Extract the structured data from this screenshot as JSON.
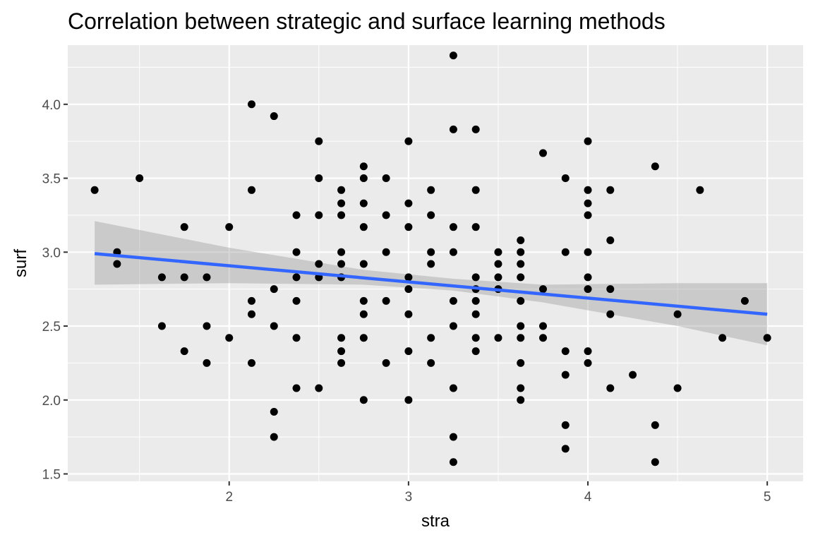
{
  "chart_data": {
    "type": "scatter",
    "title": "Correlation between strategic and surface learning methods",
    "xlabel": "stra",
    "ylabel": "surf",
    "xlim": [
      1.1,
      5.2
    ],
    "ylim": [
      1.45,
      4.4
    ],
    "x_ticks": [
      {
        "value": 2,
        "label": "2"
      },
      {
        "value": 3,
        "label": "3"
      },
      {
        "value": 4,
        "label": "4"
      },
      {
        "value": 5,
        "label": "5"
      }
    ],
    "y_ticks": [
      {
        "value": 1.5,
        "label": "1.5"
      },
      {
        "value": 2.0,
        "label": "2.0"
      },
      {
        "value": 2.5,
        "label": "2.5"
      },
      {
        "value": 3.0,
        "label": "3.0"
      },
      {
        "value": 3.5,
        "label": "3.5"
      },
      {
        "value": 4.0,
        "label": "4.0"
      }
    ],
    "grid": true,
    "panel_color": "#ebebeb",
    "point_color": "#000000",
    "line_color": "#3366ff",
    "band_color": "#999999",
    "regression": {
      "x_start": 1.25,
      "x_end": 5.0,
      "y_start": 2.99,
      "y_end": 2.58
    },
    "confidence_band": {
      "x": [
        1.25,
        2.0,
        2.75,
        3.25,
        3.75,
        4.5,
        5.0
      ],
      "upper": [
        3.21,
        3.03,
        2.88,
        2.82,
        2.78,
        2.79,
        2.79
      ],
      "lower": [
        2.78,
        2.79,
        2.78,
        2.74,
        2.66,
        2.5,
        2.37
      ]
    },
    "points": [
      [
        1.25,
        3.42
      ],
      [
        1.375,
        3.0
      ],
      [
        1.375,
        2.92
      ],
      [
        1.5,
        3.5
      ],
      [
        1.625,
        2.83
      ],
      [
        1.625,
        2.5
      ],
      [
        1.75,
        3.17
      ],
      [
        1.75,
        2.83
      ],
      [
        1.75,
        2.33
      ],
      [
        1.875,
        2.83
      ],
      [
        1.875,
        2.5
      ],
      [
        1.875,
        2.25
      ],
      [
        2.0,
        3.17
      ],
      [
        2.0,
        2.42
      ],
      [
        2.125,
        4.0
      ],
      [
        2.125,
        3.42
      ],
      [
        2.125,
        2.67
      ],
      [
        2.125,
        2.58
      ],
      [
        2.125,
        2.25
      ],
      [
        2.25,
        3.92
      ],
      [
        2.25,
        2.75
      ],
      [
        2.25,
        2.5
      ],
      [
        2.25,
        1.92
      ],
      [
        2.25,
        1.75
      ],
      [
        2.375,
        3.25
      ],
      [
        2.375,
        3.0
      ],
      [
        2.375,
        2.83
      ],
      [
        2.375,
        2.67
      ],
      [
        2.375,
        2.42
      ],
      [
        2.375,
        2.08
      ],
      [
        2.5,
        3.75
      ],
      [
        2.5,
        3.5
      ],
      [
        2.5,
        3.25
      ],
      [
        2.5,
        2.92
      ],
      [
        2.5,
        2.83
      ],
      [
        2.5,
        2.08
      ],
      [
        2.625,
        3.42
      ],
      [
        2.625,
        3.33
      ],
      [
        2.625,
        3.25
      ],
      [
        2.625,
        3.0
      ],
      [
        2.625,
        2.92
      ],
      [
        2.625,
        2.83
      ],
      [
        2.625,
        2.42
      ],
      [
        2.625,
        2.33
      ],
      [
        2.625,
        2.25
      ],
      [
        2.75,
        3.58
      ],
      [
        2.75,
        3.5
      ],
      [
        2.75,
        3.33
      ],
      [
        2.75,
        3.17
      ],
      [
        2.75,
        2.92
      ],
      [
        2.75,
        2.67
      ],
      [
        2.75,
        2.58
      ],
      [
        2.75,
        2.42
      ],
      [
        2.75,
        2.0
      ],
      [
        2.875,
        3.5
      ],
      [
        2.875,
        3.25
      ],
      [
        2.875,
        3.0
      ],
      [
        2.875,
        2.67
      ],
      [
        2.875,
        2.25
      ],
      [
        3.0,
        3.75
      ],
      [
        3.0,
        3.33
      ],
      [
        3.0,
        3.17
      ],
      [
        3.0,
        2.83
      ],
      [
        3.0,
        2.75
      ],
      [
        3.0,
        2.58
      ],
      [
        3.0,
        2.33
      ],
      [
        3.0,
        2.0
      ],
      [
        3.125,
        3.42
      ],
      [
        3.125,
        3.25
      ],
      [
        3.125,
        3.0
      ],
      [
        3.125,
        2.92
      ],
      [
        3.125,
        2.42
      ],
      [
        3.125,
        2.25
      ],
      [
        3.25,
        4.33
      ],
      [
        3.25,
        3.83
      ],
      [
        3.25,
        3.17
      ],
      [
        3.25,
        3.0
      ],
      [
        3.25,
        2.67
      ],
      [
        3.25,
        2.5
      ],
      [
        3.25,
        2.08
      ],
      [
        3.25,
        1.75
      ],
      [
        3.25,
        1.58
      ],
      [
        3.375,
        3.83
      ],
      [
        3.375,
        3.42
      ],
      [
        3.375,
        3.17
      ],
      [
        3.375,
        2.83
      ],
      [
        3.375,
        2.75
      ],
      [
        3.375,
        2.67
      ],
      [
        3.375,
        2.58
      ],
      [
        3.375,
        2.42
      ],
      [
        3.375,
        2.33
      ],
      [
        3.5,
        3.0
      ],
      [
        3.5,
        2.92
      ],
      [
        3.5,
        2.83
      ],
      [
        3.5,
        2.75
      ],
      [
        3.5,
        2.42
      ],
      [
        3.625,
        3.08
      ],
      [
        3.625,
        3.0
      ],
      [
        3.625,
        2.92
      ],
      [
        3.625,
        2.83
      ],
      [
        3.625,
        2.67
      ],
      [
        3.625,
        2.5
      ],
      [
        3.625,
        2.42
      ],
      [
        3.625,
        2.25
      ],
      [
        3.625,
        2.08
      ],
      [
        3.625,
        2.0
      ],
      [
        3.75,
        3.67
      ],
      [
        3.75,
        2.75
      ],
      [
        3.75,
        2.5
      ],
      [
        3.75,
        2.42
      ],
      [
        3.875,
        3.5
      ],
      [
        3.875,
        3.0
      ],
      [
        3.875,
        2.33
      ],
      [
        3.875,
        2.17
      ],
      [
        3.875,
        1.83
      ],
      [
        3.875,
        1.67
      ],
      [
        4.0,
        3.75
      ],
      [
        4.0,
        3.42
      ],
      [
        4.0,
        3.33
      ],
      [
        4.0,
        3.25
      ],
      [
        4.0,
        3.0
      ],
      [
        4.0,
        2.83
      ],
      [
        4.0,
        2.75
      ],
      [
        4.0,
        2.33
      ],
      [
        4.0,
        2.25
      ],
      [
        4.125,
        3.42
      ],
      [
        4.125,
        3.08
      ],
      [
        4.125,
        2.75
      ],
      [
        4.125,
        2.58
      ],
      [
        4.125,
        2.08
      ],
      [
        4.25,
        2.17
      ],
      [
        4.375,
        3.58
      ],
      [
        4.375,
        1.83
      ],
      [
        4.375,
        1.58
      ],
      [
        4.5,
        2.58
      ],
      [
        4.5,
        2.08
      ],
      [
        4.625,
        3.42
      ],
      [
        4.75,
        2.42
      ],
      [
        4.875,
        2.67
      ],
      [
        5.0,
        2.42
      ]
    ]
  }
}
